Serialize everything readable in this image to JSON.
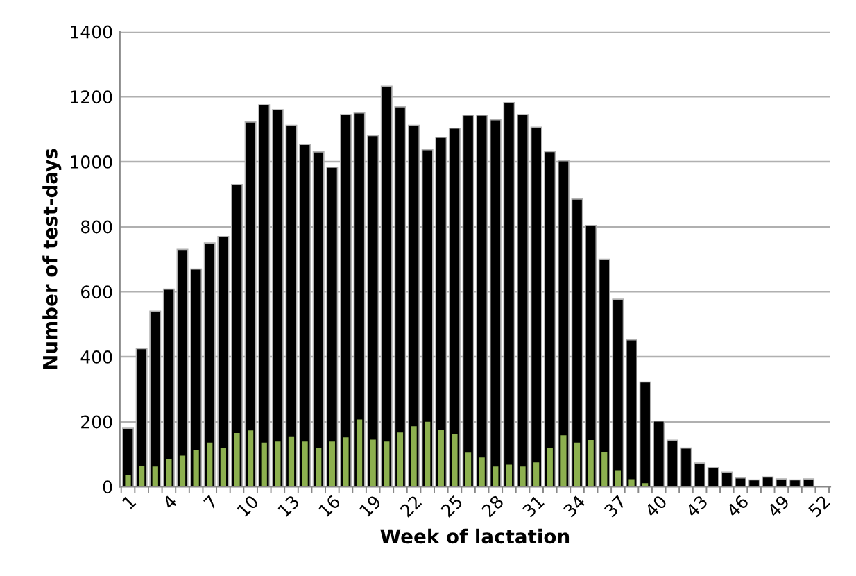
{
  "chart_data": {
    "type": "bar",
    "xlabel": "Week of lactation",
    "ylabel": "Number of test-days",
    "categories": [
      "1",
      null,
      null,
      "4",
      null,
      null,
      "7",
      null,
      null,
      "10",
      null,
      null,
      "13",
      null,
      null,
      "16",
      null,
      null,
      "19",
      null,
      null,
      "22",
      null,
      null,
      "25",
      null,
      null,
      "28",
      null,
      null,
      "31",
      null,
      null,
      "34",
      null,
      null,
      "37",
      null,
      null,
      "40",
      null,
      null,
      "43",
      null,
      null,
      "46",
      null,
      null,
      "49",
      null,
      null,
      "52"
    ],
    "series": [
      {
        "color": "#000000",
        "values": [
          180,
          425,
          540,
          608,
          730,
          670,
          750,
          770,
          930,
          1122,
          1175,
          1160,
          1112,
          1053,
          1030,
          983,
          1145,
          1150,
          1080,
          1232,
          1169,
          1112,
          1037,
          1075,
          1103,
          1143,
          1143,
          1129,
          1182,
          1145,
          1106,
          1031,
          1003,
          885,
          804,
          700,
          577,
          452,
          322,
          202,
          143,
          119,
          73,
          59,
          45,
          27,
          21,
          30,
          24,
          21,
          24,
          null
        ]
      },
      {
        "color": "#8db04f",
        "values": [
          35,
          65,
          62,
          84,
          96,
          112,
          136,
          118,
          165,
          173,
          136,
          139,
          155,
          139,
          118,
          139,
          152,
          207,
          145,
          139,
          167,
          186,
          200,
          176,
          161,
          105,
          90,
          62,
          68,
          62,
          75,
          120,
          158,
          136,
          144,
          107,
          51,
          23,
          11,
          0,
          0,
          0,
          0,
          0,
          0,
          0,
          0,
          0,
          0,
          0,
          0,
          null
        ]
      }
    ],
    "ylim": [
      0,
      1400
    ],
    "yticks": [
      0,
      200,
      400,
      600,
      800,
      1000,
      1200,
      1400
    ],
    "grid": "y",
    "legend": false
  }
}
